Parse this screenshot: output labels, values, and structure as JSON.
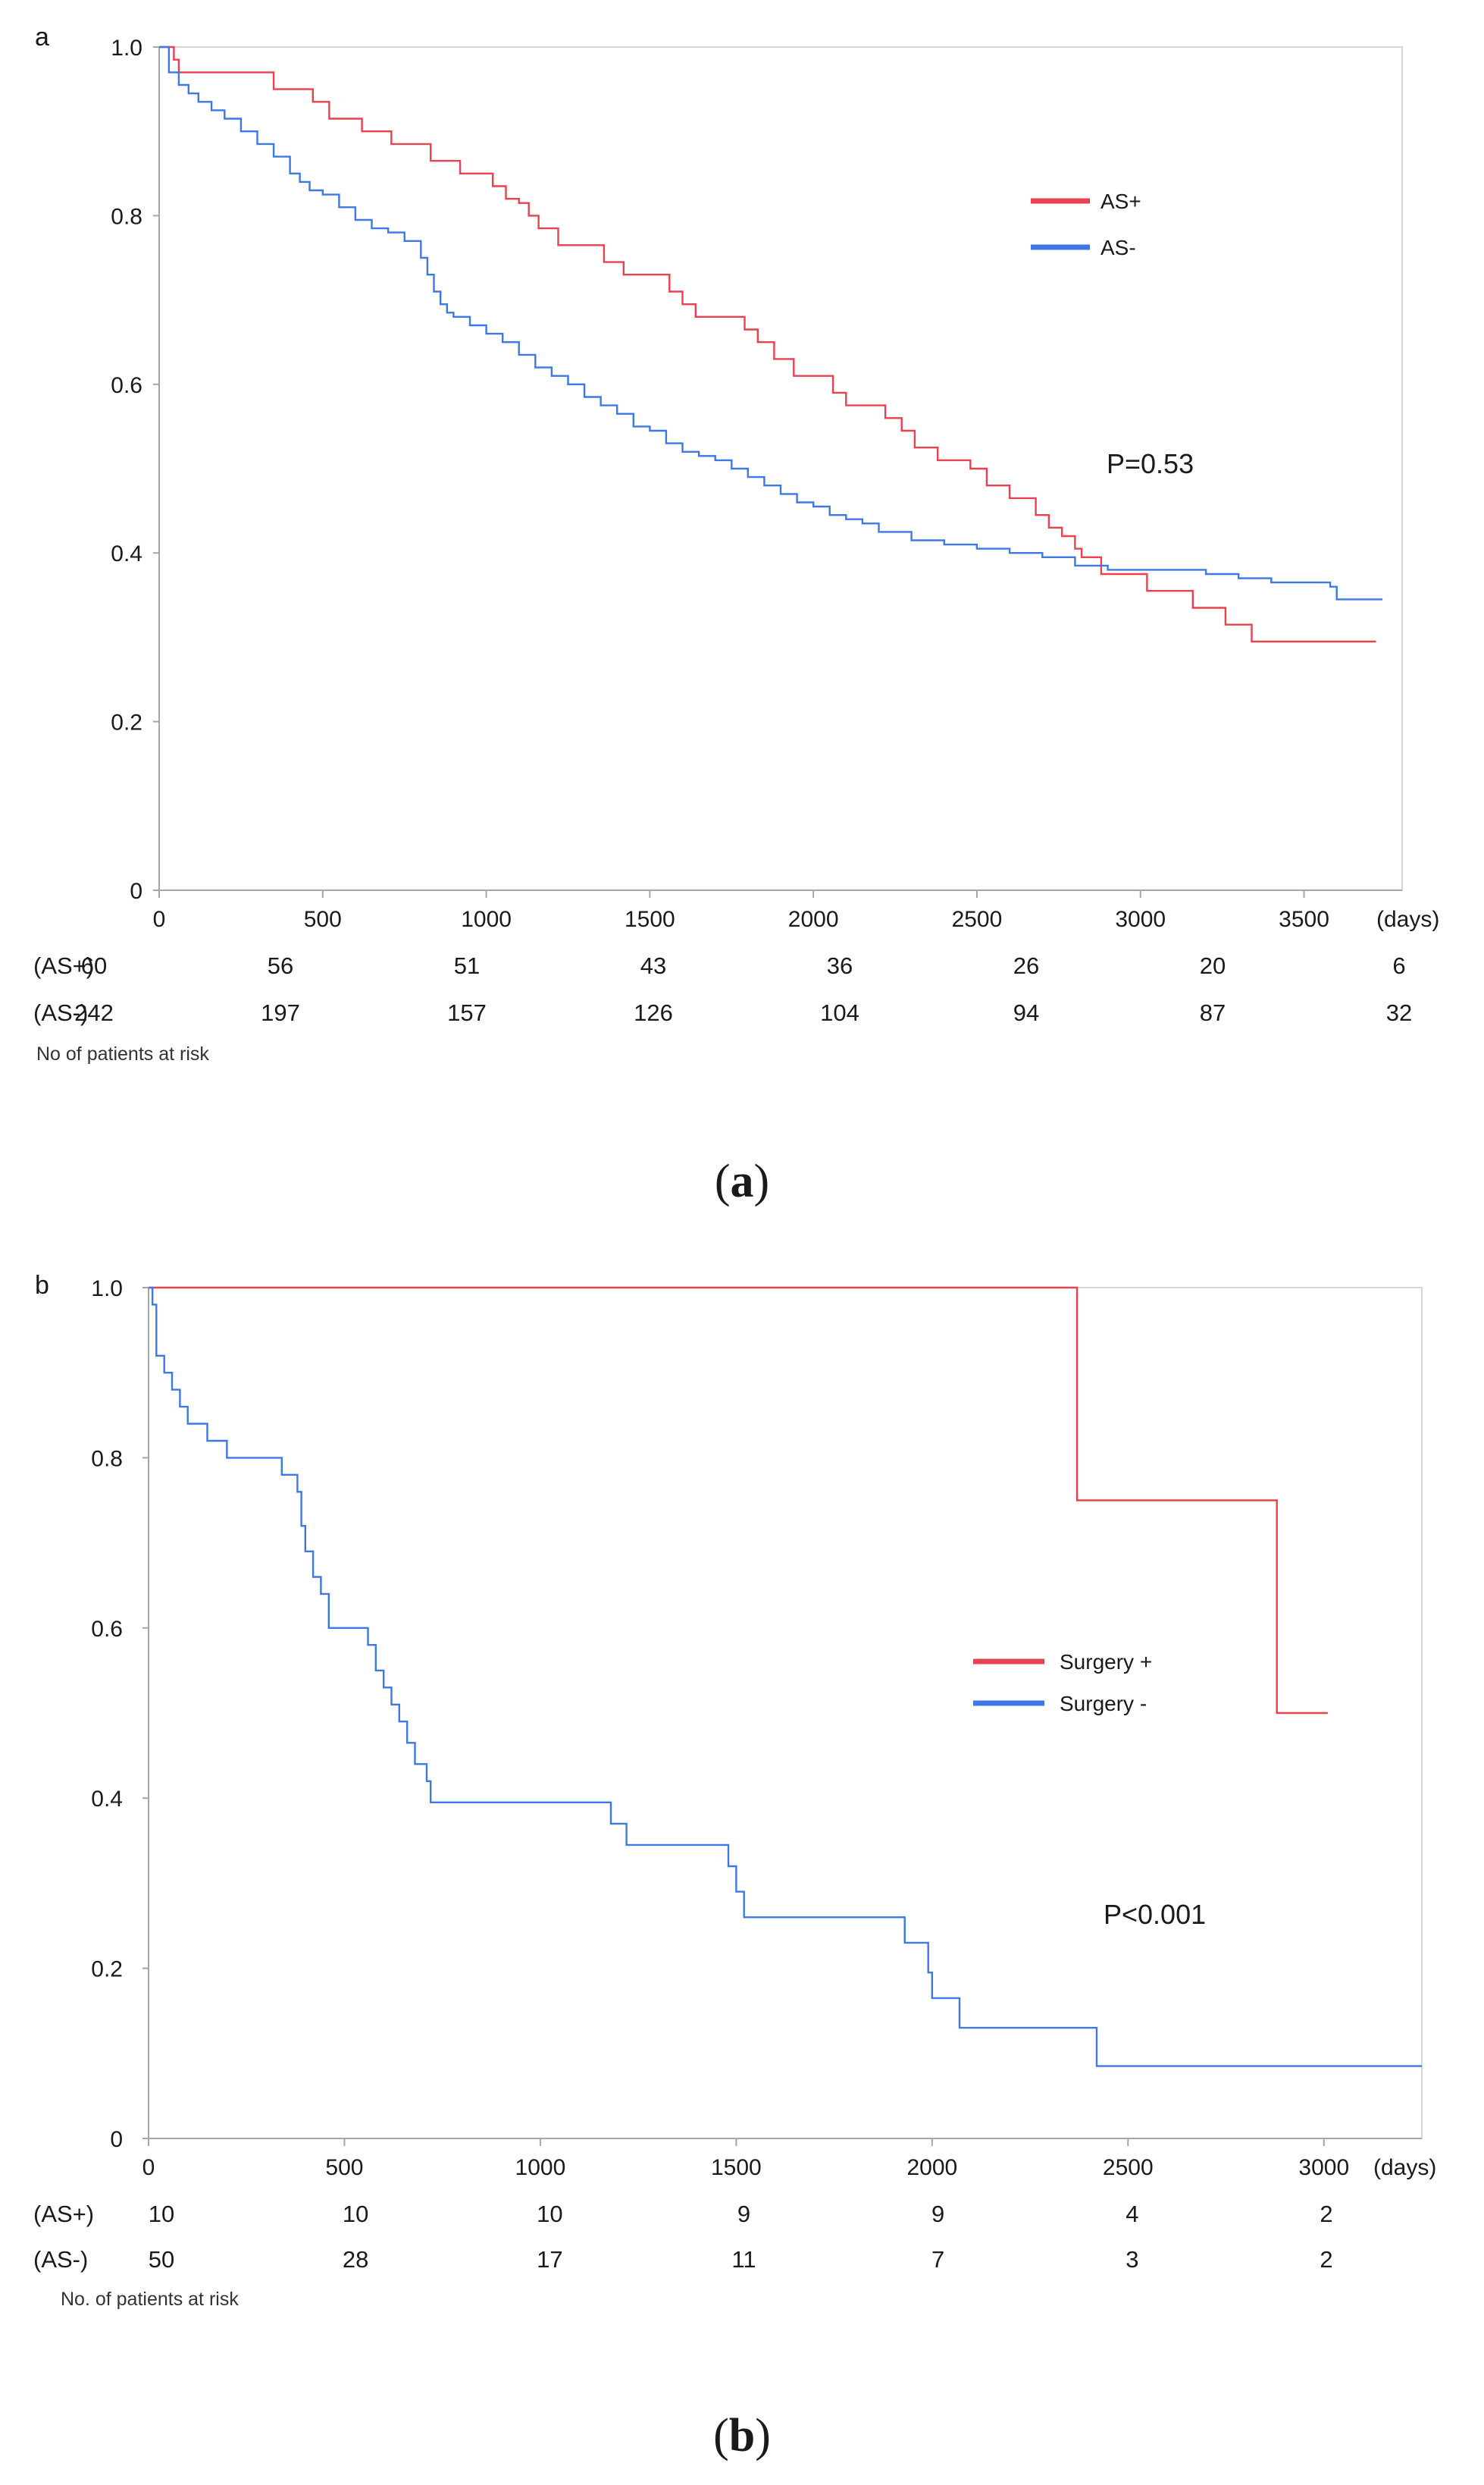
{
  "colors": {
    "as_plus": "#e8414f",
    "as_minus": "#3d78e3"
  },
  "chart_data": [
    {
      "panel_label": "a",
      "caption_letter": "a",
      "type": "line",
      "step": true,
      "x_unit": "(days)",
      "xlim": [
        0,
        3800
      ],
      "ylim": [
        0,
        1.0
      ],
      "x_ticks": [
        "0",
        "500",
        "1000",
        "1500",
        "2000",
        "2500",
        "3000",
        "3500"
      ],
      "x_tick_values": [
        0,
        500,
        1000,
        1500,
        2000,
        2500,
        3000,
        3500
      ],
      "y_ticks": [
        "0",
        "0.2",
        "0.4",
        "0.6",
        "0.8",
        "1.0"
      ],
      "y_tick_values": [
        0,
        0.2,
        0.4,
        0.6,
        0.8,
        1.0
      ],
      "grid": false,
      "legend_position": "upper-right",
      "annotation": "P=0.53",
      "series": [
        {
          "name": "AS+",
          "color": "#e8414f",
          "x": [
            0,
            45,
            60,
            350,
            380,
            470,
            520,
            620,
            710,
            830,
            920,
            980,
            1020,
            1060,
            1100,
            1130,
            1160,
            1220,
            1360,
            1420,
            1560,
            1600,
            1640,
            1690,
            1790,
            1830,
            1880,
            1940,
            2000,
            2060,
            2100,
            2160,
            2220,
            2270,
            2310,
            2380,
            2430,
            2480,
            2530,
            2600,
            2680,
            2720,
            2760,
            2800,
            2820,
            2880,
            3020,
            3090,
            3160,
            3260,
            3340,
            3720
          ],
          "y": [
            1.0,
            0.985,
            0.97,
            0.95,
            0.95,
            0.935,
            0.915,
            0.9,
            0.885,
            0.865,
            0.85,
            0.85,
            0.835,
            0.82,
            0.815,
            0.8,
            0.785,
            0.765,
            0.745,
            0.73,
            0.71,
            0.695,
            0.68,
            0.68,
            0.665,
            0.65,
            0.63,
            0.61,
            0.61,
            0.59,
            0.575,
            0.575,
            0.56,
            0.545,
            0.525,
            0.51,
            0.51,
            0.5,
            0.48,
            0.465,
            0.445,
            0.43,
            0.42,
            0.405,
            0.395,
            0.375,
            0.355,
            0.355,
            0.335,
            0.315,
            0.295,
            0.295
          ]
        },
        {
          "name": "AS-",
          "color": "#3d78e3",
          "x": [
            0,
            30,
            60,
            90,
            120,
            160,
            200,
            250,
            300,
            350,
            400,
            430,
            460,
            500,
            550,
            600,
            650,
            700,
            750,
            800,
            820,
            840,
            860,
            880,
            900,
            950,
            1000,
            1050,
            1100,
            1150,
            1200,
            1250,
            1300,
            1350,
            1400,
            1450,
            1500,
            1550,
            1600,
            1650,
            1700,
            1750,
            1800,
            1850,
            1900,
            1950,
            2000,
            2050,
            2100,
            2150,
            2200,
            2300,
            2400,
            2500,
            2600,
            2700,
            2800,
            2900,
            3000,
            3100,
            3200,
            3300,
            3400,
            3500,
            3580,
            3600,
            3740
          ],
          "y": [
            1.0,
            0.97,
            0.955,
            0.945,
            0.935,
            0.925,
            0.915,
            0.9,
            0.885,
            0.87,
            0.85,
            0.84,
            0.83,
            0.825,
            0.81,
            0.795,
            0.785,
            0.78,
            0.77,
            0.75,
            0.73,
            0.71,
            0.695,
            0.685,
            0.68,
            0.67,
            0.66,
            0.65,
            0.635,
            0.62,
            0.61,
            0.6,
            0.585,
            0.575,
            0.565,
            0.55,
            0.545,
            0.53,
            0.52,
            0.515,
            0.51,
            0.5,
            0.49,
            0.48,
            0.47,
            0.46,
            0.455,
            0.445,
            0.44,
            0.435,
            0.425,
            0.415,
            0.41,
            0.405,
            0.4,
            0.395,
            0.385,
            0.38,
            0.38,
            0.38,
            0.375,
            0.37,
            0.365,
            0.365,
            0.36,
            0.345,
            0.345
          ]
        }
      ],
      "risk_table": {
        "rows": [
          {
            "label": "(AS+)",
            "values": [
              "60",
              "56",
              "51",
              "43",
              "36",
              "26",
              "20",
              "6"
            ]
          },
          {
            "label": "(AS-)",
            "values": [
              "242",
              "197",
              "157",
              "126",
              "104",
              "94",
              "87",
              "32"
            ]
          }
        ],
        "note": "No of patients at risk"
      }
    },
    {
      "panel_label": "b",
      "caption_letter": "b",
      "type": "line",
      "step": true,
      "x_unit": "(days)",
      "xlim": [
        0,
        3250
      ],
      "ylim": [
        0,
        1.0
      ],
      "x_ticks": [
        "0",
        "500",
        "1000",
        "1500",
        "2000",
        "2500",
        "3000"
      ],
      "x_tick_values": [
        0,
        500,
        1000,
        1500,
        2000,
        2500,
        3000
      ],
      "y_ticks": [
        "0",
        "0.2",
        "0.4",
        "0.6",
        "0.8",
        "1.0"
      ],
      "y_tick_values": [
        0,
        0.2,
        0.4,
        0.6,
        0.8,
        1.0
      ],
      "grid": false,
      "legend_position": "middle-right",
      "annotation": "P<0.001",
      "series": [
        {
          "name": "Surgery +",
          "color": "#e8414f",
          "x": [
            0,
            2370,
            2880,
            3010
          ],
          "y": [
            1.0,
            0.75,
            0.5,
            0.5
          ]
        },
        {
          "name": "Surgery -",
          "color": "#3d78e3",
          "x": [
            0,
            10,
            20,
            40,
            60,
            80,
            100,
            150,
            200,
            340,
            380,
            390,
            400,
            420,
            440,
            460,
            560,
            580,
            600,
            620,
            640,
            660,
            680,
            710,
            720,
            1180,
            1220,
            1480,
            1500,
            1520,
            1930,
            1990,
            2000,
            2010,
            2070,
            2420,
            3250
          ],
          "y": [
            1.0,
            0.98,
            0.92,
            0.9,
            0.88,
            0.86,
            0.84,
            0.82,
            0.8,
            0.78,
            0.76,
            0.72,
            0.69,
            0.66,
            0.64,
            0.6,
            0.58,
            0.55,
            0.53,
            0.51,
            0.49,
            0.465,
            0.44,
            0.42,
            0.395,
            0.37,
            0.345,
            0.32,
            0.29,
            0.26,
            0.23,
            0.195,
            0.165,
            0.165,
            0.13,
            0.085,
            0.085
          ]
        }
      ],
      "risk_table": {
        "rows": [
          {
            "label": "(AS+)",
            "values": [
              "10",
              "10",
              "10",
              "9",
              "9",
              "4",
              "2"
            ]
          },
          {
            "label": "(AS-)",
            "values": [
              "50",
              "28",
              "17",
              "11",
              "7",
              "3",
              "2"
            ]
          }
        ],
        "note": "No. of patients at risk"
      }
    }
  ]
}
